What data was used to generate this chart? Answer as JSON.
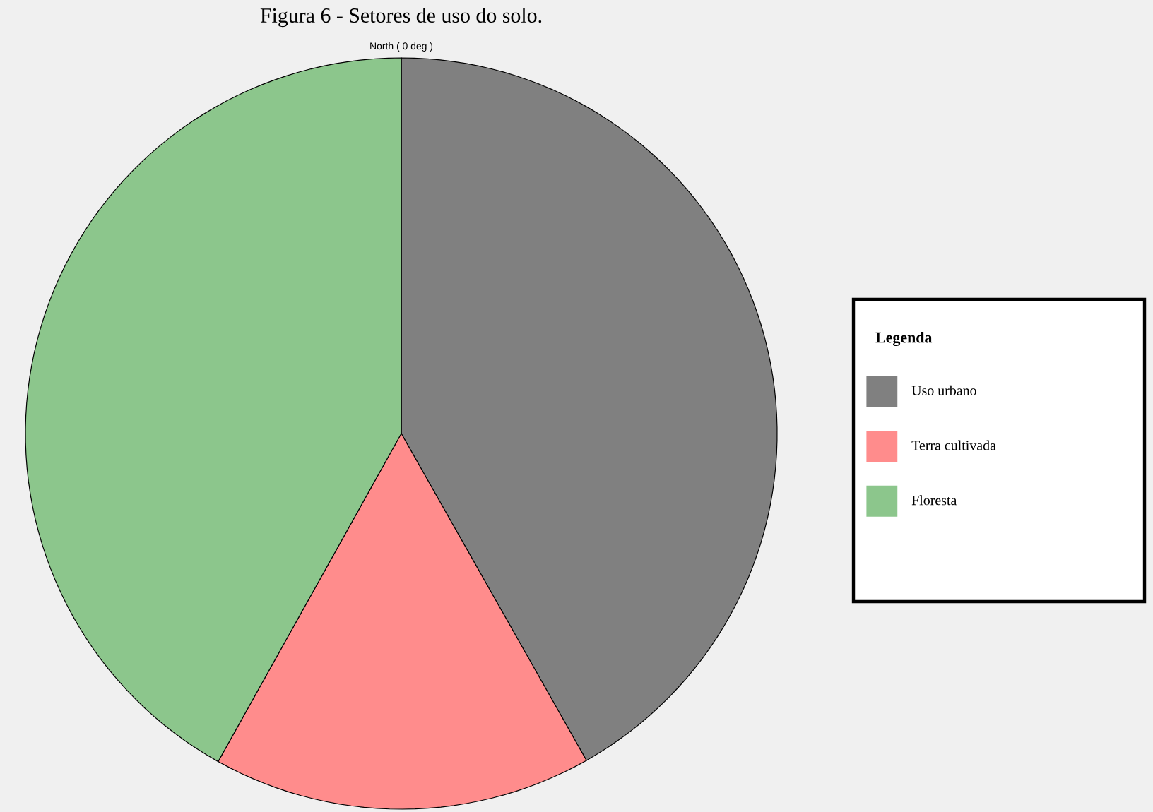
{
  "chart_data": {
    "type": "pie",
    "title": "Figura 6 - Setores de uso do solo.",
    "legend_title": "Legenda",
    "legend": "right",
    "annotations": [
      "North ( 0 deg )"
    ],
    "categories": [
      "Uso urbano",
      "Terra cultivada",
      "Floresta"
    ],
    "values": [
      41.8,
      16.3,
      41.9
    ],
    "colors": [
      "#808080",
      "#ff8c8c",
      "#8cc68c"
    ]
  }
}
